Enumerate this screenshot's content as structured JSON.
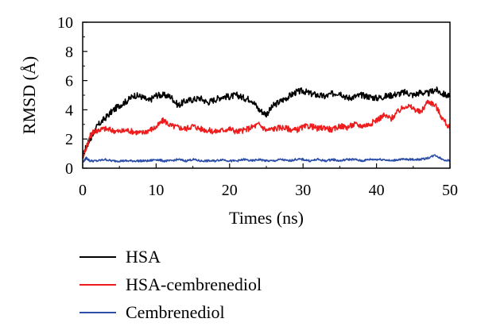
{
  "chart_data": {
    "type": "line",
    "xlabel": "Times (ns)",
    "ylabel": "RMSD (Å)",
    "xlim": [
      0,
      50
    ],
    "ylim": [
      0,
      10
    ],
    "xticks": [
      0,
      10,
      20,
      30,
      40,
      50
    ],
    "yticks": [
      0,
      2,
      4,
      6,
      8,
      10
    ],
    "grid": false,
    "legend_position": "bottom",
    "series": [
      {
        "name": "HSA",
        "color": "#000000",
        "x": [
          0,
          0.5,
          1,
          1.5,
          2,
          3,
          4,
          5,
          6,
          7,
          8,
          9,
          10,
          11,
          12,
          13,
          14,
          15,
          16,
          17,
          18,
          19,
          20,
          21,
          22,
          23,
          24,
          25,
          26,
          27,
          28,
          29,
          30,
          31,
          32,
          33,
          34,
          35,
          36,
          37,
          38,
          39,
          40,
          41,
          42,
          43,
          44,
          45,
          46,
          47,
          48,
          49,
          50
        ],
        "y": [
          0.8,
          1.5,
          2.0,
          2.4,
          2.9,
          3.4,
          3.9,
          4.3,
          4.6,
          5.0,
          4.9,
          4.6,
          5.0,
          5.0,
          4.9,
          4.3,
          4.6,
          4.7,
          4.8,
          4.5,
          4.7,
          4.9,
          4.9,
          5.0,
          4.8,
          4.7,
          4.0,
          3.7,
          4.3,
          4.6,
          4.9,
          5.2,
          5.3,
          5.1,
          5.0,
          4.9,
          5.1,
          5.2,
          4.8,
          4.9,
          5.0,
          4.9,
          4.8,
          4.9,
          5.0,
          5.1,
          5.2,
          5.0,
          5.2,
          5.1,
          5.4,
          5.1,
          4.9
        ]
      },
      {
        "name": "HSA-cembrenediol",
        "color": "#ee1c1c",
        "x": [
          0,
          0.5,
          1,
          1.5,
          2,
          3,
          4,
          5,
          6,
          7,
          8,
          9,
          10,
          11,
          12,
          13,
          14,
          15,
          16,
          17,
          18,
          19,
          20,
          21,
          22,
          23,
          24,
          25,
          26,
          27,
          28,
          29,
          30,
          31,
          32,
          33,
          34,
          35,
          36,
          37,
          38,
          39,
          40,
          41,
          42,
          43,
          44,
          45,
          46,
          47,
          48,
          49,
          50
        ],
        "y": [
          0.8,
          1.4,
          2.2,
          2.5,
          2.6,
          2.7,
          2.6,
          2.5,
          2.6,
          2.5,
          2.4,
          2.6,
          2.8,
          3.3,
          2.9,
          2.8,
          2.7,
          2.9,
          2.7,
          2.6,
          2.5,
          2.6,
          2.7,
          2.5,
          2.6,
          2.8,
          3.0,
          2.6,
          2.7,
          2.8,
          2.7,
          2.6,
          2.8,
          2.9,
          2.7,
          2.8,
          2.6,
          2.9,
          2.8,
          3.0,
          2.9,
          3.0,
          3.3,
          3.6,
          3.4,
          3.9,
          4.3,
          4.1,
          3.8,
          4.6,
          4.3,
          3.4,
          2.7
        ]
      },
      {
        "name": "Cembrenediol",
        "color": "#2b4ea8",
        "x": [
          0,
          0.5,
          1,
          2,
          3,
          4,
          5,
          6,
          7,
          8,
          9,
          10,
          11,
          12,
          13,
          14,
          15,
          16,
          17,
          18,
          19,
          20,
          21,
          22,
          23,
          24,
          25,
          26,
          27,
          28,
          29,
          30,
          31,
          32,
          33,
          34,
          35,
          36,
          37,
          38,
          39,
          40,
          41,
          42,
          43,
          44,
          45,
          46,
          47,
          48,
          49,
          50
        ],
        "y": [
          0.4,
          0.7,
          0.5,
          0.5,
          0.6,
          0.5,
          0.5,
          0.5,
          0.5,
          0.5,
          0.5,
          0.6,
          0.5,
          0.5,
          0.6,
          0.5,
          0.6,
          0.5,
          0.5,
          0.5,
          0.6,
          0.5,
          0.5,
          0.6,
          0.5,
          0.6,
          0.5,
          0.5,
          0.6,
          0.5,
          0.6,
          0.6,
          0.5,
          0.6,
          0.5,
          0.6,
          0.5,
          0.6,
          0.6,
          0.5,
          0.6,
          0.6,
          0.6,
          0.5,
          0.6,
          0.6,
          0.6,
          0.6,
          0.7,
          0.9,
          0.6,
          0.5
        ]
      }
    ]
  }
}
